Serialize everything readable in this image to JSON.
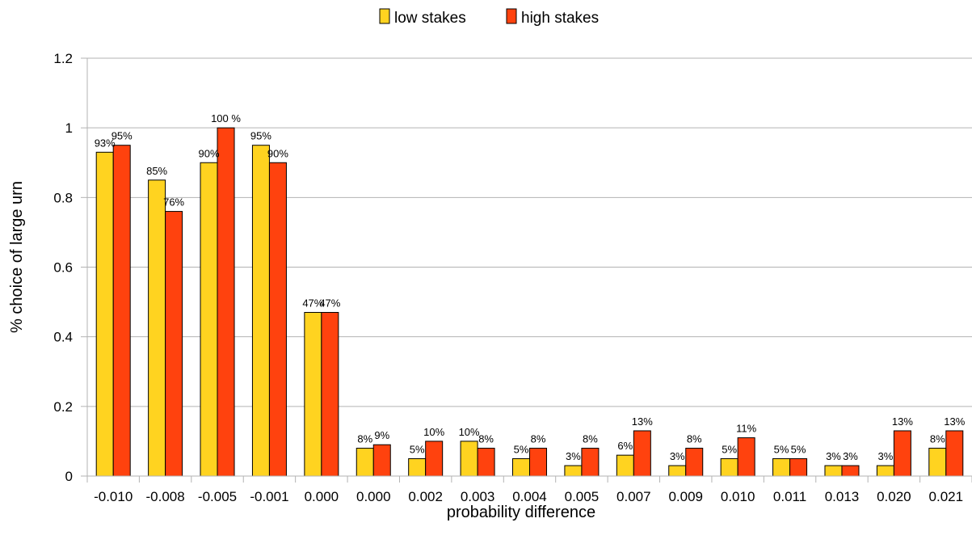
{
  "chart_data": {
    "type": "bar",
    "title": "",
    "xlabel": "probability difference",
    "ylabel": "% choice of large urn",
    "ylim": [
      0,
      1.2
    ],
    "yticks": [
      "0",
      "0.2",
      "0.4",
      "0.6",
      "0.8",
      "1",
      "1.2"
    ],
    "grid": true,
    "legend_position": "top",
    "categories": [
      "-0.010",
      "-0.008",
      "-0.005",
      "-0.001",
      "0.000",
      "0.000",
      "0.002",
      "0.003",
      "0.004",
      "0.005",
      "0.007",
      "0.009",
      "0.010",
      "0.011",
      "0.013",
      "0.020",
      "0.021"
    ],
    "series": [
      {
        "name": "low stakes",
        "color": "#FFD320",
        "values": [
          0.93,
          0.85,
          0.9,
          0.95,
          0.47,
          0.08,
          0.05,
          0.1,
          0.05,
          0.03,
          0.06,
          0.03,
          0.05,
          0.05,
          0.03,
          0.03,
          0.08
        ],
        "labels": [
          "93%",
          "85%",
          "90%",
          "95%",
          "47%",
          "8%",
          "5%",
          "10%",
          "5%",
          "3%",
          "6%",
          "3%",
          "5%",
          "5%",
          "3%",
          "3%",
          "8%"
        ]
      },
      {
        "name": "high stakes",
        "color": "#FF420E",
        "values": [
          0.95,
          0.76,
          1.0,
          0.9,
          0.47,
          0.09,
          0.1,
          0.08,
          0.08,
          0.08,
          0.13,
          0.08,
          0.11,
          0.05,
          0.03,
          0.13,
          0.13
        ],
        "labels": [
          "95%",
          "76%",
          "100 %",
          "90%",
          "47%",
          "9%",
          "10%",
          "8%",
          "8%",
          "8%",
          "13%",
          "8%",
          "11%",
          "5%",
          "3%",
          "13%",
          "13%"
        ]
      }
    ]
  }
}
